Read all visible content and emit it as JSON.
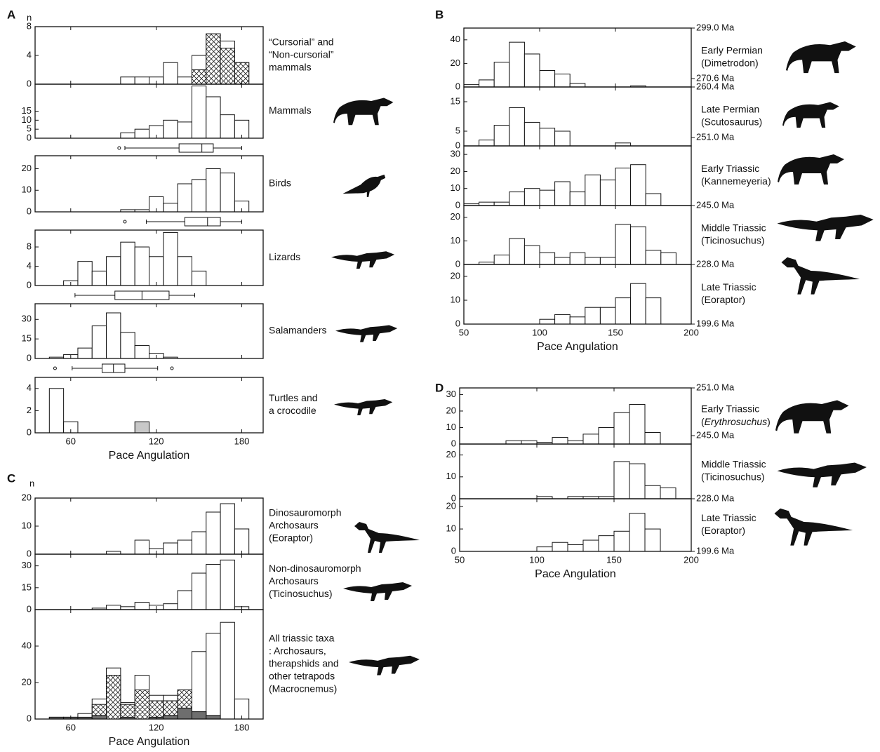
{
  "chart_data": [
    {
      "type": "histogram",
      "letter": "A",
      "ylabel": "n",
      "xlabel": "Pace Angulation",
      "xlim": [
        35,
        195
      ],
      "xticks": [
        60,
        120,
        180
      ],
      "subplots": [
        {
          "label": [
            "“Cursorial” and",
            "“Non-cursorial”",
            "mammals"
          ],
          "ylim": [
            0,
            8
          ],
          "yticks": [
            0,
            4,
            8
          ],
          "bins": [
            95,
            105,
            115,
            125,
            135,
            145,
            155,
            165,
            175,
            185
          ],
          "series": [
            {
              "fill": "white",
              "values": [
                1,
                1,
                1,
                3,
                1,
                4,
                7,
                6,
                3
              ]
            },
            {
              "fill": "hatch",
              "values": [
                0,
                0,
                0,
                0,
                0,
                2,
                7,
                5,
                3
              ]
            }
          ]
        },
        {
          "label": [
            "Mammals"
          ],
          "ylim": [
            0,
            30
          ],
          "yticks": [
            0,
            5,
            10,
            15
          ],
          "bins": [
            95,
            105,
            115,
            125,
            135,
            145,
            155,
            165,
            175,
            185
          ],
          "series": [
            {
              "fill": "white",
              "values": [
                3,
                5,
                7,
                10,
                9,
                29,
                23,
                13,
                10
              ]
            }
          ],
          "box": {
            "whiskers": [
              98,
              180
            ],
            "quartiles": [
              136,
              160
            ],
            "median": 152,
            "outliers": [
              94
            ]
          }
        },
        {
          "label": [
            "Birds"
          ],
          "ylim": [
            0,
            26
          ],
          "yticks": [
            0,
            10,
            20
          ],
          "bins": [
            95,
            105,
            115,
            125,
            135,
            145,
            155,
            165,
            175,
            185
          ],
          "series": [
            {
              "fill": "white",
              "values": [
                1,
                1,
                7,
                4,
                13,
                15,
                20,
                18,
                5
              ]
            }
          ],
          "box": {
            "whiskers": [
              113,
              180
            ],
            "quartiles": [
              140,
              165
            ],
            "median": 156,
            "outliers": [
              98
            ]
          }
        },
        {
          "label": [
            "Lizards"
          ],
          "ylim": [
            0,
            11.5
          ],
          "yticks": [
            0,
            4,
            8
          ],
          "bins": [
            55,
            65,
            75,
            85,
            95,
            105,
            115,
            125,
            135,
            145,
            155
          ],
          "series": [
            {
              "fill": "white",
              "values": [
                1,
                5,
                3,
                6,
                9,
                8,
                6,
                11,
                6,
                3
              ]
            }
          ],
          "box": {
            "whiskers": [
              63,
              147
            ],
            "quartiles": [
              91,
              129
            ],
            "median": 110,
            "outliers": []
          }
        },
        {
          "label": [
            "Salamanders"
          ],
          "ylim": [
            0,
            42
          ],
          "yticks": [
            0,
            15,
            30
          ],
          "bins": [
            45,
            55,
            65,
            75,
            85,
            95,
            105,
            115,
            125,
            135
          ],
          "series": [
            {
              "fill": "white",
              "values": [
                1,
                3,
                8,
                25,
                35,
                20,
                10,
                4,
                1
              ]
            }
          ],
          "box": {
            "whiskers": [
              61,
              121
            ],
            "quartiles": [
              82,
              98
            ],
            "median": 90,
            "outliers": [
              49,
              131
            ]
          }
        },
        {
          "label": [
            "Turtles and",
            "a crocodile"
          ],
          "ylim": [
            0,
            5
          ],
          "yticks": [
            0,
            2,
            4
          ],
          "bins": [
            45,
            55,
            65,
            75,
            85,
            95,
            105,
            115
          ],
          "series": [
            {
              "fill": "white",
              "values": [
                4,
                1,
                0,
                0,
                0,
                0,
                0
              ]
            },
            {
              "fill": "#c8c8c8",
              "values": [
                0,
                0,
                0,
                0,
                0,
                0,
                1
              ]
            }
          ]
        }
      ]
    },
    {
      "type": "histogram",
      "letter": "B",
      "xlabel": "Pace Angulation",
      "xlim": [
        50,
        200
      ],
      "xticks": [
        50,
        100,
        150,
        200
      ],
      "subplots": [
        {
          "label": [
            "Early Permian",
            "(Dimetrodon)"
          ],
          "ages": [
            "299.0 Ma",
            "270.6 Ma"
          ],
          "ylim": [
            0,
            50
          ],
          "yticks": [
            0,
            20,
            40
          ],
          "bins": [
            50,
            60,
            70,
            80,
            90,
            100,
            110,
            120,
            130,
            140,
            150,
            160,
            170
          ],
          "series": [
            {
              "fill": "white",
              "values": [
                2,
                6,
                21,
                38,
                28,
                14,
                11,
                3,
                0,
                0,
                0,
                1
              ]
            }
          ]
        },
        {
          "label": [
            "Late Permian",
            "(Scutosaurus)"
          ],
          "ages": [
            "260.4 Ma",
            "251.0 Ma"
          ],
          "ylim": [
            0,
            20
          ],
          "yticks": [
            0,
            5,
            15
          ],
          "bins": [
            50,
            60,
            70,
            80,
            90,
            100,
            110,
            120,
            130,
            140,
            150,
            160
          ],
          "series": [
            {
              "fill": "white",
              "values": [
                0,
                2,
                7,
                13,
                8,
                6,
                5,
                0,
                0,
                0,
                1
              ]
            }
          ]
        },
        {
          "label": [
            "Early Triassic",
            "(Kannemeyeria)"
          ],
          "ages": [
            "245.0 Ma"
          ],
          "ylim": [
            0,
            35
          ],
          "yticks": [
            0,
            10,
            20,
            30
          ],
          "bins": [
            50,
            60,
            70,
            80,
            90,
            100,
            110,
            120,
            130,
            140,
            150,
            160,
            170,
            180
          ],
          "series": [
            {
              "fill": "white",
              "values": [
                1,
                2,
                2,
                8,
                10,
                9,
                14,
                8,
                18,
                15,
                22,
                24,
                7
              ]
            }
          ]
        },
        {
          "label": [
            "Middle Triassic",
            "(Ticinosuchus)"
          ],
          "ages": [
            "228.0 Ma"
          ],
          "ylim": [
            0,
            25
          ],
          "yticks": [
            0,
            10,
            20
          ],
          "bins": [
            60,
            70,
            80,
            90,
            100,
            110,
            120,
            130,
            140,
            150,
            160,
            170,
            180,
            190
          ],
          "series": [
            {
              "fill": "white",
              "values": [
                1,
                4,
                11,
                8,
                5,
                3,
                5,
                3,
                3,
                17,
                16,
                6,
                5
              ]
            }
          ]
        },
        {
          "label": [
            "Late Triassic",
            "(Eoraptor)"
          ],
          "ages": [
            "199.6 Ma"
          ],
          "ylim": [
            0,
            25
          ],
          "yticks": [
            0,
            10,
            20
          ],
          "bins": [
            100,
            110,
            120,
            130,
            140,
            150,
            160,
            170,
            180
          ],
          "series": [
            {
              "fill": "white",
              "values": [
                2,
                4,
                3,
                7,
                7,
                11,
                17,
                11
              ]
            }
          ]
        }
      ]
    },
    {
      "type": "histogram",
      "letter": "C",
      "ylabel": "n",
      "xlabel": "Pace Angulation",
      "xlim": [
        35,
        195
      ],
      "xticks": [
        60,
        120,
        180
      ],
      "subplots": [
        {
          "label": [
            "Dinosauromorph",
            "Archosaurs",
            "(Eoraptor)"
          ],
          "ylim": [
            0,
            20
          ],
          "yticks": [
            0,
            10,
            20
          ],
          "bins": [
            85,
            95,
            105,
            115,
            125,
            135,
            145,
            155,
            165,
            175,
            185
          ],
          "series": [
            {
              "fill": "white",
              "values": [
                1,
                0,
                5,
                2,
                4,
                5,
                8,
                15,
                18,
                9
              ]
            }
          ]
        },
        {
          "label": [
            "Non-dinosauromorph",
            "Archosaurs",
            "(Ticinosuchus)"
          ],
          "ylim": [
            0,
            38
          ],
          "yticks": [
            0,
            15,
            30
          ],
          "bins": [
            75,
            85,
            95,
            105,
            115,
            125,
            135,
            145,
            155,
            165,
            175,
            185
          ],
          "series": [
            {
              "fill": "white",
              "values": [
                1,
                3,
                2,
                5,
                3,
                4,
                13,
                25,
                31,
                34,
                2
              ]
            }
          ]
        },
        {
          "label": [
            "All triassic taxa",
            ": Archosaurs,",
            "therapshids and",
            "other tetrapods",
            "(Macrocnemus)"
          ],
          "ylim": [
            0,
            60
          ],
          "yticks": [
            0,
            20,
            40
          ],
          "bins": [
            45,
            55,
            65,
            75,
            85,
            95,
            105,
            115,
            125,
            135,
            145,
            155,
            165,
            175,
            185
          ],
          "series": [
            {
              "fill": "white",
              "values": [
                1,
                1,
                3,
                11,
                28,
                9,
                24,
                13,
                13,
                16,
                37,
                47,
                53,
                11
              ]
            },
            {
              "fill": "hatch",
              "values": [
                0,
                0,
                0,
                8,
                24,
                8,
                16,
                10,
                10,
                16,
                4,
                0,
                0,
                0
              ]
            },
            {
              "fill": "#6e6e6e",
              "values": [
                1,
                1,
                1,
                2,
                0,
                1,
                0,
                1,
                2,
                6,
                4,
                2,
                0,
                0
              ]
            }
          ]
        }
      ]
    },
    {
      "type": "histogram",
      "letter": "D",
      "xlabel": "Pace Angulation",
      "xlim": [
        50,
        200
      ],
      "xticks": [
        50,
        100,
        150,
        200
      ],
      "subplots": [
        {
          "label": [
            "Early Triassic",
            [
              {
                "text": "("
              },
              {
                "text": "Erythrosuchus",
                "italic": true
              },
              {
                "text": ")"
              }
            ]
          ],
          "ages": [
            "251.0 Ma",
            "245.0 Ma"
          ],
          "ylim": [
            0,
            34
          ],
          "yticks": [
            0,
            10,
            20,
            30
          ],
          "bins": [
            80,
            90,
            100,
            110,
            120,
            130,
            140,
            150,
            160,
            170,
            180
          ],
          "series": [
            {
              "fill": "white",
              "values": [
                2,
                2,
                1,
                4,
                2,
                6,
                10,
                19,
                24,
                7
              ]
            }
          ]
        },
        {
          "label": [
            "Middle Triassic",
            "(Ticinosuchus)"
          ],
          "ages": [
            "228.0 Ma"
          ],
          "ylim": [
            0,
            25
          ],
          "yticks": [
            0,
            10,
            20
          ],
          "bins": [
            100,
            110,
            120,
            130,
            140,
            150,
            160,
            170,
            180,
            190
          ],
          "series": [
            {
              "fill": "white",
              "values": [
                1,
                0,
                1,
                1,
                1,
                17,
                16,
                6,
                5
              ]
            }
          ]
        },
        {
          "label": [
            "Late Triassic",
            "(Eoraptor)"
          ],
          "ages": [
            "199.6 Ma"
          ],
          "ylim": [
            0,
            23.5
          ],
          "yticks": [
            0,
            10,
            20
          ],
          "bins": [
            100,
            110,
            120,
            130,
            140,
            150,
            160,
            170,
            180
          ],
          "series": [
            {
              "fill": "white",
              "values": [
                2,
                4,
                3,
                5,
                7,
                9,
                17,
                10
              ]
            }
          ]
        }
      ]
    }
  ]
}
